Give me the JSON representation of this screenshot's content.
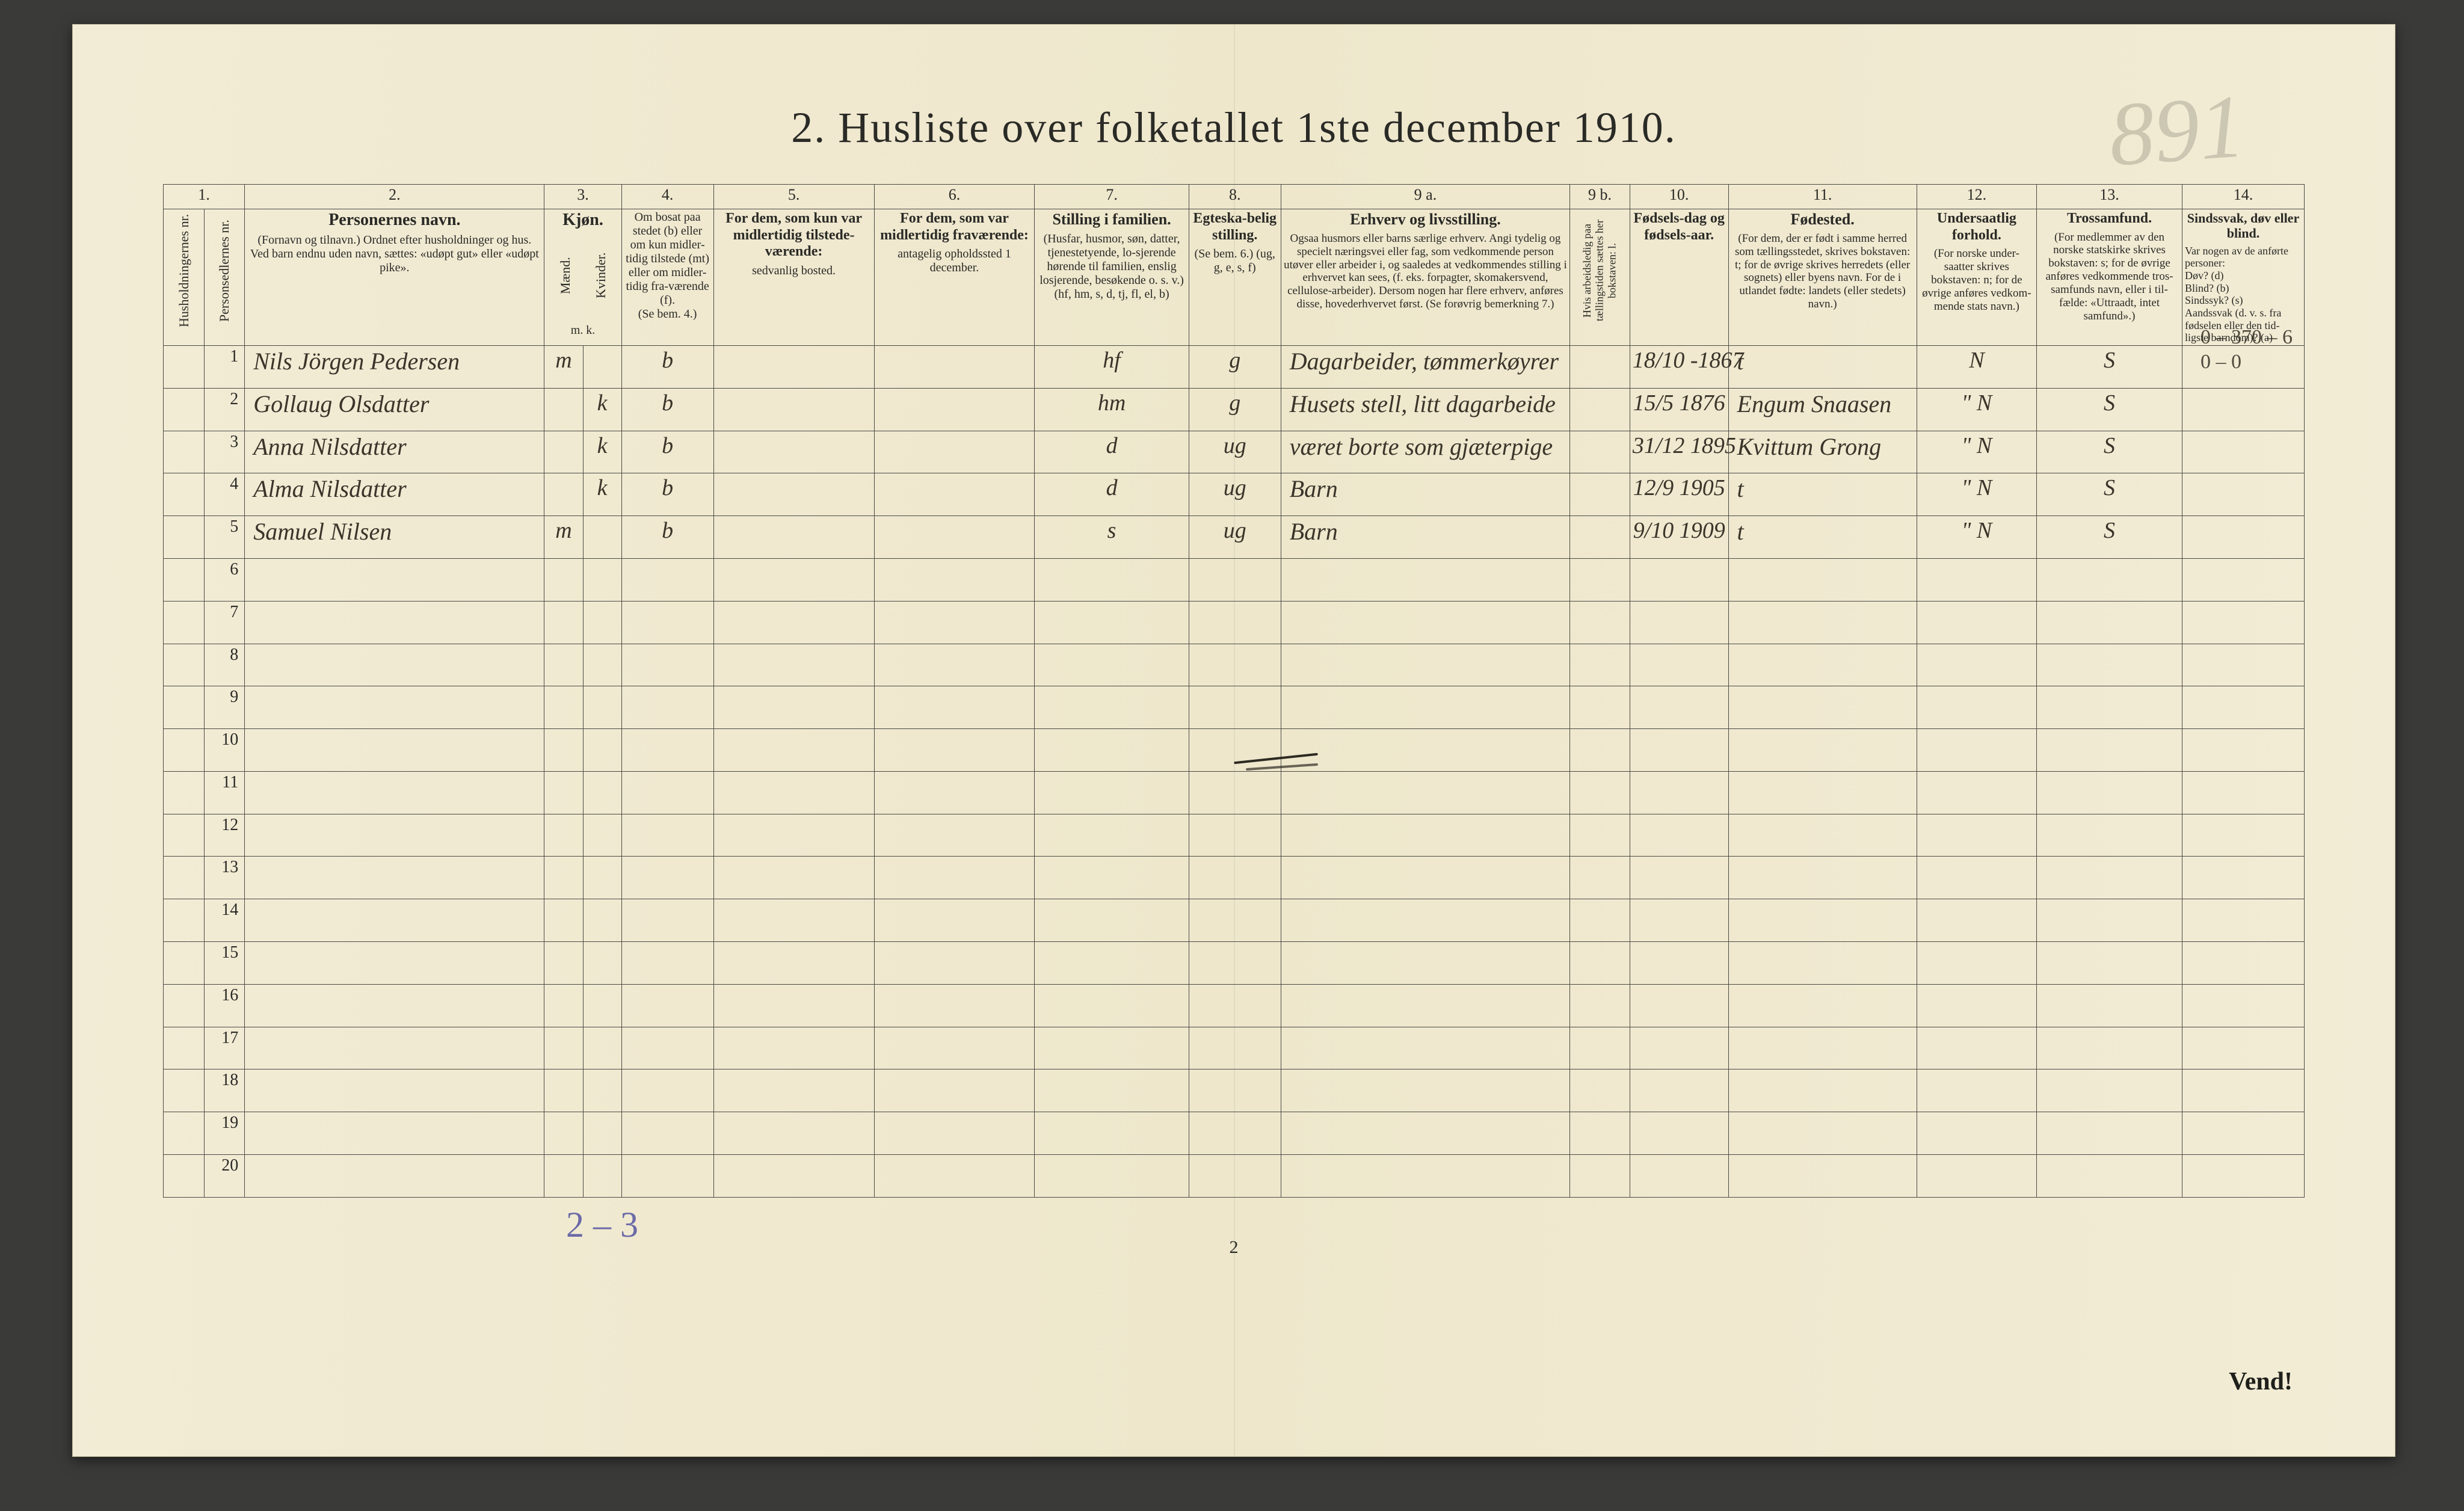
{
  "title": "2.  Husliste over folketallet 1ste december 1910.",
  "corner_number": "891",
  "page_number": "2",
  "vend": "Vend!",
  "bottom_handnote": "2 – 3",
  "margin_notes": {
    "line1": "0 – 370 – 6",
    "line2": "0 –  0"
  },
  "col_numbers": [
    "1.",
    "2.",
    "3.",
    "4.",
    "5.",
    "6.",
    "7.",
    "8.",
    "9 a.",
    "9 b.",
    "10.",
    "11.",
    "12.",
    "13.",
    "14."
  ],
  "col_widths_pct": [
    1.9,
    1.9,
    14.0,
    1.8,
    1.8,
    4.3,
    7.5,
    7.5,
    7.2,
    4.3,
    13.5,
    2.8,
    4.6,
    8.8,
    5.6,
    6.8,
    5.7
  ],
  "headers": {
    "c1": "Husholdningernes nr.",
    "c1b": "Personsedlernes nr.",
    "c2_main": "Personernes navn.",
    "c2_sub": "(Fornavn og tilnavn.)\nOrdnet efter husholdninger og hus.\nVed barn endnu uden navn, sættes: «udøpt gut» eller «udøpt pike».",
    "c3_main": "Kjøn.",
    "c3_m": "Mænd.",
    "c3_k": "Kvinder.",
    "c3_foot": "m. k.",
    "c4_main": "Om bosat paa stedet (b) eller om kun midler-tidig tilstede (mt) eller om midler-tidig fra-værende (f).",
    "c4_sub": "(Se bem. 4.)",
    "c5_main": "For dem, som kun var midlertidig tilstede-værende:",
    "c5_sub": "sedvanlig bosted.",
    "c6_main": "For dem, som var midlertidig fraværende:",
    "c6_sub": "antagelig opholdssted 1 december.",
    "c7_main": "Stilling i familien.",
    "c7_sub": "(Husfar, husmor, søn, datter, tjenestetyende, lo-sjerende hørende til familien, enslig losjerende, besøkende o. s. v.)\n(hf, hm, s, d, tj, fl, el, b)",
    "c8_main": "Egteska-belig stilling.",
    "c8_sub": "(Se bem. 6.)\n(ug, g, e, s, f)",
    "c9a_main": "Erhverv og livsstilling.",
    "c9a_sub": "Ogsaa husmors eller barns særlige erhverv. Angi tydelig og specielt næringsvei eller fag, som vedkommende person utøver eller arbeider i, og saaledes at vedkommendes stilling i erhvervet kan sees, (f. eks. forpagter, skomakersvend, cellulose-arbeider). Dersom nogen har flere erhverv, anføres disse, hovederhvervet først.\n(Se forøvrig bemerkning 7.)",
    "c9b": "Hvis arbeidsledig paa tællingstiden sættes her bokstaven: l.",
    "c10_main": "Fødsels-dag og fødsels-aar.",
    "c11_main": "Fødested.",
    "c11_sub": "(For dem, der er født i samme herred som tællingsstedet, skrives bokstaven: t; for de øvrige skrives herredets (eller sognets) eller byens navn. For de i utlandet fødte: landets (eller stedets) navn.)",
    "c12_main": "Undersaatlig forhold.",
    "c12_sub": "(For norske under-saatter skrives bokstaven: n; for de øvrige anføres vedkom-mende stats navn.)",
    "c13_main": "Trossamfund.",
    "c13_sub": "(For medlemmer av den norske statskirke skrives bokstaven: s; for de øvrige anføres vedkommende tros-samfunds navn, eller i til-fælde: «Uttraadt, intet samfund».)",
    "c14_main": "Sindssvak, døv eller blind.",
    "c14_sub": "Var nogen av de anførte personer:\nDøv?        (d)\nBlind?      (b)\nSindssyk?   (s)\nAandssvak (d. v. s. fra fødselen eller den tid-ligste barndom)?  (a)"
  },
  "rows": [
    {
      "n": "1",
      "name": "Nils Jörgen Pedersen",
      "sex_m": "m",
      "sex_k": "",
      "bosat": "b",
      "c5": "",
      "c6": "",
      "fam": "hf",
      "egte": "g",
      "erhverv": "Dagarbeider, tømmerkøyrer",
      "l": "",
      "fdag": "18/10 -1867",
      "fsted": "t",
      "und": "N",
      "tro": "S",
      "c14": ""
    },
    {
      "n": "2",
      "name": "Gollaug Olsdatter",
      "sex_m": "",
      "sex_k": "k",
      "bosat": "b",
      "c5": "",
      "c6": "",
      "fam": "hm",
      "egte": "g",
      "erhverv": "Husets stell, litt dagarbeide",
      "l": "",
      "fdag": "15/5 1876",
      "fsted": "Engum Snaasen",
      "und": "\" N",
      "tro": "S",
      "c14": ""
    },
    {
      "n": "3",
      "name": "Anna Nilsdatter",
      "sex_m": "",
      "sex_k": "k",
      "bosat": "b",
      "c5": "",
      "c6": "",
      "fam": "d",
      "egte": "ug",
      "erhverv": "været borte som gjæterpige",
      "l": "",
      "fdag": "31/12 1895",
      "fsted": "Kvittum Grong",
      "und": "\" N",
      "tro": "S",
      "c14": ""
    },
    {
      "n": "4",
      "name": "Alma Nilsdatter",
      "sex_m": "",
      "sex_k": "k",
      "bosat": "b",
      "c5": "",
      "c6": "",
      "fam": "d",
      "egte": "ug",
      "erhverv": "Barn",
      "l": "",
      "fdag": "12/9 1905",
      "fsted": "t",
      "und": "\" N",
      "tro": "S",
      "c14": ""
    },
    {
      "n": "5",
      "name": "Samuel Nilsen",
      "sex_m": "m",
      "sex_k": "",
      "bosat": "b",
      "c5": "",
      "c6": "",
      "fam": "s",
      "egte": "ug",
      "erhverv": "Barn",
      "l": "",
      "fdag": "9/10 1909",
      "fsted": "t",
      "und": "\" N",
      "tro": "S",
      "c14": ""
    }
  ],
  "blank_rows_from": 6,
  "blank_rows_to": 20
}
